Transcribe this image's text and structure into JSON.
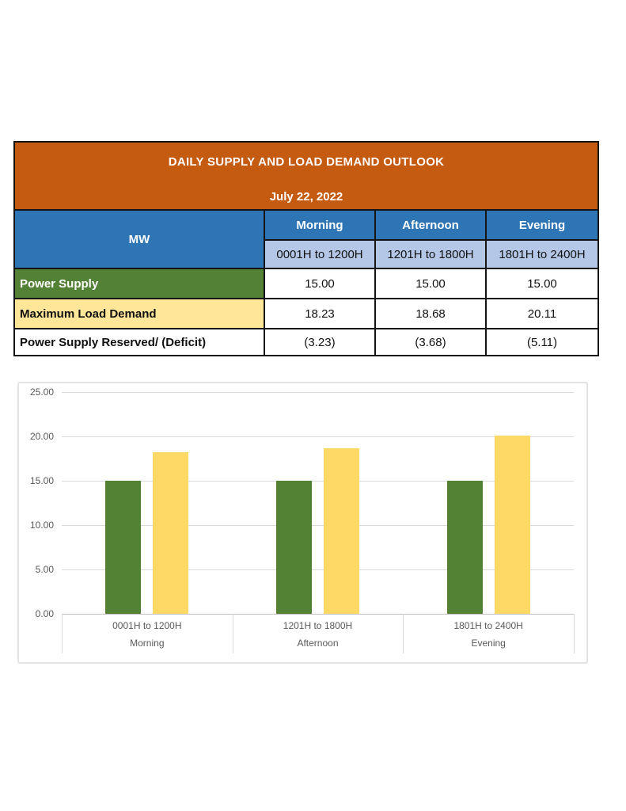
{
  "report": {
    "title": "DAILY SUPPLY AND LOAD DEMAND OUTLOOK",
    "date": "July 22, 2022",
    "colors": {
      "banner_bg": "#C55A11",
      "header_blue": "#2E75B6",
      "subheader_blue": "#B4C7E7",
      "supply_green": "#538135",
      "demand_yellow": "#FFE699",
      "border_black": "#141414"
    },
    "table": {
      "unit_label": "MW",
      "period_headers": [
        "Morning",
        "Afternoon",
        "Evening"
      ],
      "time_headers": [
        "0001H to 1200H",
        "1201H to 1800H",
        "1801H to 2400H"
      ],
      "rows": [
        {
          "label": "Power Supply",
          "values": [
            "15.00",
            "15.00",
            "15.00"
          ]
        },
        {
          "label": "Maximum Load Demand",
          "values": [
            "18.23",
            "18.68",
            "20.11"
          ]
        },
        {
          "label": "Power Supply Reserved/ (Deficit)",
          "values": [
            "(3.23)",
            "(3.68)",
            "(5.11)"
          ]
        }
      ]
    }
  },
  "chart_data": {
    "type": "bar",
    "title": "",
    "categories": [
      {
        "time": "0001H to 1200H",
        "period": "Morning"
      },
      {
        "time": "1201H to 1800H",
        "period": "Afternoon"
      },
      {
        "time": "1801H to 2400H",
        "period": "Evening"
      }
    ],
    "series": [
      {
        "name": "Power Supply",
        "color": "#548235",
        "values": [
          15.0,
          15.0,
          15.0
        ]
      },
      {
        "name": "Maximum Load Demand",
        "color": "#FFD966",
        "values": [
          18.23,
          18.68,
          20.11
        ]
      }
    ],
    "ylim": [
      0,
      25
    ],
    "yticks": [
      "0.00",
      "5.00",
      "10.00",
      "15.00",
      "20.00",
      "25.00"
    ],
    "grid": true,
    "legend": "none",
    "gridline_color": "#D9D9D9",
    "axis_line_color": "#BFBFBF",
    "axis_text_color": "#595959"
  }
}
